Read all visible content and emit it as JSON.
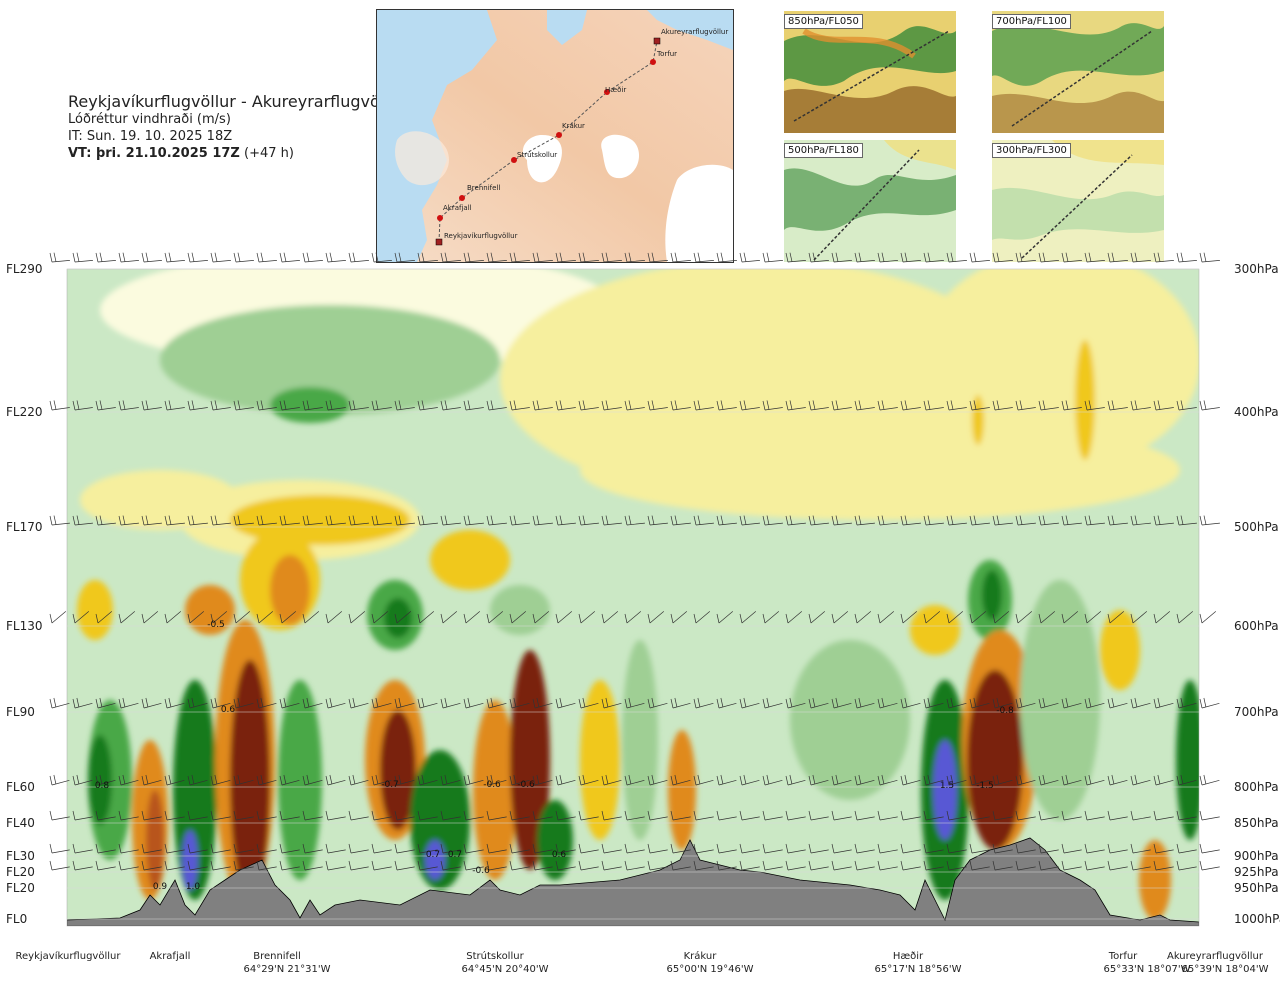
{
  "header": {
    "route": "Reykjavíkurflugvöllur - Akureyrarflugvöllur",
    "variable": "Lóðréttur vindhraði (m/s)",
    "issue_time": "IT: Sun. 19. 10. 2025 18Z",
    "valid_prefix": "VT: þri. 21.10.2025 17Z",
    "valid_suffix": " (+47 h)"
  },
  "thumbnails": [
    {
      "label": "850hPa/FL050"
    },
    {
      "label": "700hPa/FL100"
    },
    {
      "label": "500hPa/FL180"
    },
    {
      "label": "300hPa/FL300"
    }
  ],
  "map_waypoints": [
    {
      "name": "Akureyrarflugvöllur"
    },
    {
      "name": "Torfur"
    },
    {
      "name": "Hæðir"
    },
    {
      "name": "Krákur"
    },
    {
      "name": "Strútskollur"
    },
    {
      "name": "Brennifell"
    },
    {
      "name": "Akrafjall"
    },
    {
      "name": "Reykjavíkurflugvöllur"
    }
  ],
  "colors": {
    "strong_down": "#7a2410",
    "down_3": "#b8541a",
    "down_2": "#e08a1a",
    "down_1": "#f0c81a",
    "weak_down": "#f6ef9e",
    "neutral": "#fbfbdf",
    "weak_up": "#cbe8c5",
    "up_1": "#9fcf94",
    "up_2": "#4aa846",
    "up_3": "#137a1e",
    "strong_up": "#5858d4",
    "terrain": "#808080"
  },
  "chart_data": {
    "type": "heatmap",
    "variable": "Lóðréttur vindhraði (m/s)",
    "levels": [
      {
        "fl": "FL290",
        "hpa": "300hPa"
      },
      {
        "fl": "FL220",
        "hpa": "400hPa"
      },
      {
        "fl": "FL170",
        "hpa": "500hPa"
      },
      {
        "fl": "FL130",
        "hpa": "600hPa"
      },
      {
        "fl": "FL90",
        "hpa": "700hPa"
      },
      {
        "fl": "FL60",
        "hpa": "800hPa"
      },
      {
        "fl": "FL40",
        "hpa": "850hPa"
      },
      {
        "fl": "FL30",
        "hpa": "900hPa"
      },
      {
        "fl": "FL20",
        "hpa": "925hPa"
      },
      {
        "fl": "FL20",
        "hpa": "950hPa"
      },
      {
        "fl": "FL0",
        "hpa": "1000hPa"
      }
    ],
    "waypoints": [
      {
        "name": "Reykjavíkurflugvöllur",
        "coord": ""
      },
      {
        "name": "Akrafjall",
        "coord": ""
      },
      {
        "name": "Brennifell",
        "coord": "64°29'N 21°31'W"
      },
      {
        "name": "Strútskollur",
        "coord": "64°45'N 20°40'W"
      },
      {
        "name": "Krákur",
        "coord": "65°00'N 19°46'W"
      },
      {
        "name": "Hæðir",
        "coord": "65°17'N 18°56'W"
      },
      {
        "name": "Torfur",
        "coord": "65°33'N 18°07'W"
      },
      {
        "name": "Akureyrarflugvöllur",
        "coord": "65°39'N 18°04'W"
      }
    ],
    "annotations": [
      "-0.5",
      "0.6",
      "0.8",
      "0.9",
      "1.0",
      "-0.7",
      "-0.6",
      "-0.6",
      "0.7",
      "0.7",
      "-0.6",
      "0.6",
      "1.5",
      "-1.5",
      "-0.8"
    ]
  }
}
